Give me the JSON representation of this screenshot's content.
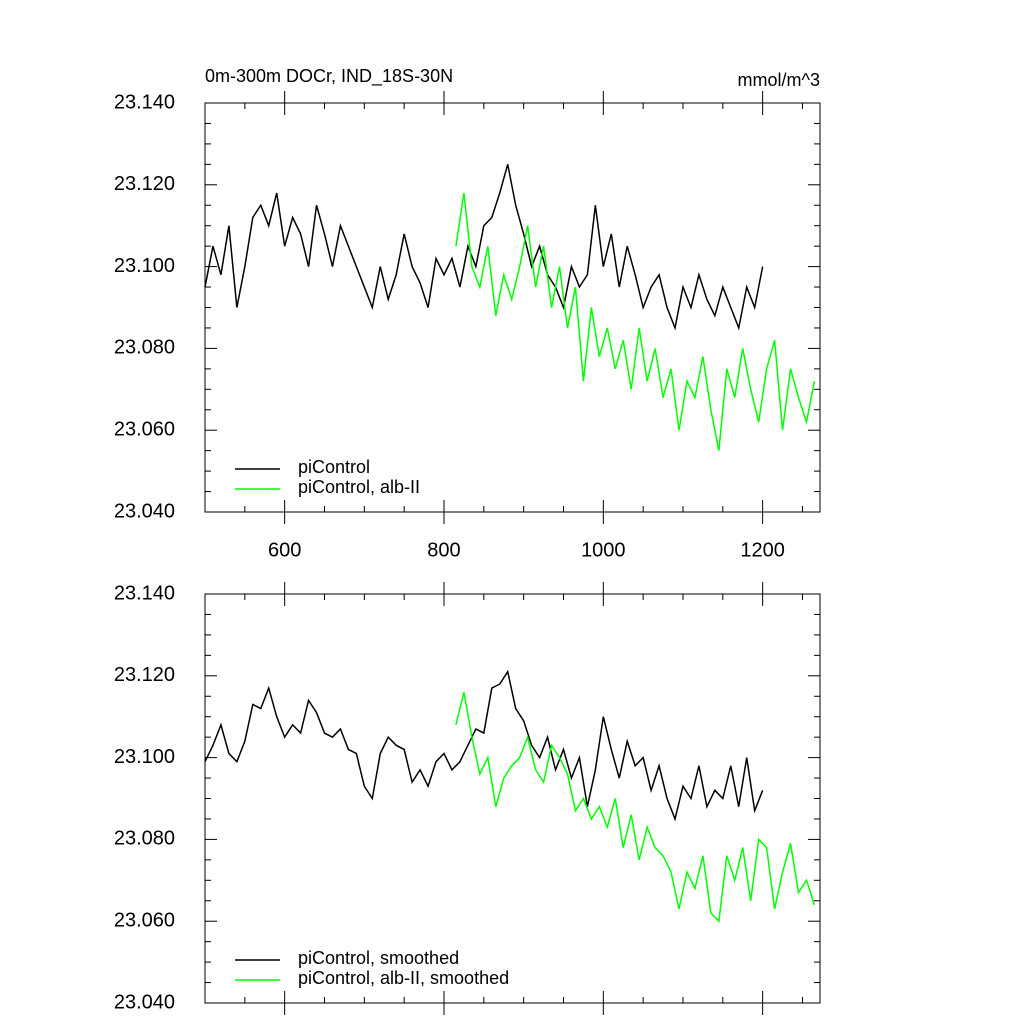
{
  "chart_data": [
    {
      "type": "line",
      "title": "0m-300m DOCr, IND_18S-30N",
      "units": "mmol/m^3",
      "xlim": [
        500,
        1272
      ],
      "xticks": [
        600,
        800,
        1000,
        1200
      ],
      "show_xtick_labels": true,
      "ylim": [
        23.04,
        23.14
      ],
      "yticks": [
        {
          "value": 23.04,
          "label": "23.040"
        },
        {
          "value": 23.06,
          "label": "23.060"
        },
        {
          "value": 23.08,
          "label": "23.080"
        },
        {
          "value": 23.1,
          "label": "23.100"
        },
        {
          "value": 23.12,
          "label": "23.120"
        },
        {
          "value": 23.14,
          "label": "23.140"
        }
      ],
      "legend": "lower left",
      "series": [
        {
          "name": "piControl",
          "color": "#000000",
          "x": [
            500,
            510,
            520,
            530,
            540,
            550,
            560,
            570,
            580,
            590,
            600,
            610,
            620,
            630,
            640,
            650,
            660,
            670,
            680,
            690,
            700,
            710,
            720,
            730,
            740,
            750,
            760,
            770,
            780,
            790,
            800,
            810,
            820,
            830,
            840,
            850,
            860,
            870,
            880,
            890,
            900,
            910,
            920,
            930,
            940,
            950,
            960,
            970,
            980,
            990,
            1000,
            1010,
            1020,
            1030,
            1040,
            1050,
            1060,
            1070,
            1080,
            1090,
            1100,
            1110,
            1120,
            1130,
            1140,
            1150,
            1160,
            1170,
            1180,
            1190,
            1200
          ],
          "values": [
            23.095,
            23.105,
            23.098,
            23.11,
            23.09,
            23.1,
            23.112,
            23.115,
            23.11,
            23.118,
            23.105,
            23.112,
            23.108,
            23.1,
            23.115,
            23.108,
            23.1,
            23.11,
            23.105,
            23.1,
            23.095,
            23.09,
            23.1,
            23.092,
            23.098,
            23.108,
            23.1,
            23.096,
            23.09,
            23.102,
            23.098,
            23.102,
            23.095,
            23.105,
            23.1,
            23.11,
            23.112,
            23.118,
            23.125,
            23.115,
            23.108,
            23.1,
            23.105,
            23.098,
            23.095,
            23.09,
            23.1,
            23.095,
            23.098,
            23.115,
            23.1,
            23.108,
            23.095,
            23.105,
            23.098,
            23.09,
            23.095,
            23.098,
            23.09,
            23.085,
            23.095,
            23.09,
            23.098,
            23.092,
            23.088,
            23.095,
            23.09,
            23.085,
            23.095,
            23.09,
            23.1
          ]
        },
        {
          "name": "piControl, alb-II",
          "color": "#00ff00",
          "x": [
            815,
            825,
            835,
            845,
            855,
            865,
            875,
            885,
            895,
            905,
            915,
            925,
            935,
            945,
            955,
            965,
            975,
            985,
            995,
            1005,
            1015,
            1025,
            1035,
            1045,
            1055,
            1065,
            1075,
            1085,
            1095,
            1105,
            1115,
            1125,
            1135,
            1145,
            1155,
            1165,
            1175,
            1185,
            1195,
            1205,
            1215,
            1225,
            1235,
            1245,
            1255,
            1265
          ],
          "values": [
            23.105,
            23.118,
            23.1,
            23.095,
            23.105,
            23.088,
            23.098,
            23.092,
            23.1,
            23.11,
            23.095,
            23.105,
            23.09,
            23.1,
            23.085,
            23.095,
            23.072,
            23.09,
            23.078,
            23.085,
            23.075,
            23.082,
            23.07,
            23.085,
            23.072,
            23.08,
            23.068,
            23.075,
            23.06,
            23.072,
            23.068,
            23.078,
            23.065,
            23.055,
            23.075,
            23.068,
            23.08,
            23.07,
            23.062,
            23.075,
            23.082,
            23.06,
            23.075,
            23.068,
            23.062,
            23.072
          ]
        }
      ]
    },
    {
      "type": "line",
      "xlim": [
        500,
        1272
      ],
      "xticks": [
        600,
        800,
        1000,
        1200
      ],
      "show_xtick_labels": false,
      "ylim": [
        23.04,
        23.14
      ],
      "yticks": [
        {
          "value": 23.04,
          "label": "23.040"
        },
        {
          "value": 23.06,
          "label": "23.060"
        },
        {
          "value": 23.08,
          "label": "23.080"
        },
        {
          "value": 23.1,
          "label": "23.100"
        },
        {
          "value": 23.12,
          "label": "23.120"
        },
        {
          "value": 23.14,
          "label": "23.140"
        }
      ],
      "legend": "lower left",
      "series": [
        {
          "name": "piControl, smoothed",
          "color": "#000000",
          "x": [
            500,
            510,
            520,
            530,
            540,
            550,
            560,
            570,
            580,
            590,
            600,
            610,
            620,
            630,
            640,
            650,
            660,
            670,
            680,
            690,
            700,
            710,
            720,
            730,
            740,
            750,
            760,
            770,
            780,
            790,
            800,
            810,
            820,
            830,
            840,
            850,
            860,
            870,
            880,
            890,
            900,
            910,
            920,
            930,
            940,
            950,
            960,
            970,
            980,
            990,
            1000,
            1010,
            1020,
            1030,
            1040,
            1050,
            1060,
            1070,
            1080,
            1090,
            1100,
            1110,
            1120,
            1130,
            1140,
            1150,
            1160,
            1170,
            1180,
            1190,
            1200
          ],
          "values": [
            23.099,
            23.103,
            23.108,
            23.101,
            23.099,
            23.104,
            23.113,
            23.112,
            23.117,
            23.11,
            23.105,
            23.108,
            23.106,
            23.114,
            23.111,
            23.106,
            23.105,
            23.107,
            23.102,
            23.101,
            23.093,
            23.09,
            23.101,
            23.105,
            23.103,
            23.102,
            23.094,
            23.097,
            23.093,
            23.099,
            23.101,
            23.097,
            23.099,
            23.103,
            23.107,
            23.106,
            23.117,
            23.118,
            23.121,
            23.112,
            23.109,
            23.103,
            23.1,
            23.105,
            23.097,
            23.102,
            23.095,
            23.1,
            23.088,
            23.097,
            23.11,
            23.102,
            23.095,
            23.104,
            23.098,
            23.1,
            23.092,
            23.098,
            23.09,
            23.085,
            23.093,
            23.09,
            23.098,
            23.088,
            23.092,
            23.09,
            23.098,
            23.088,
            23.1,
            23.087,
            23.092
          ]
        },
        {
          "name": "piControl, alb-II, smoothed",
          "color": "#00ff00",
          "x": [
            815,
            825,
            835,
            845,
            855,
            865,
            875,
            885,
            895,
            905,
            915,
            925,
            935,
            945,
            955,
            965,
            975,
            985,
            995,
            1005,
            1015,
            1025,
            1035,
            1045,
            1055,
            1065,
            1075,
            1085,
            1095,
            1105,
            1115,
            1125,
            1135,
            1145,
            1155,
            1165,
            1175,
            1185,
            1195,
            1205,
            1215,
            1225,
            1235,
            1245,
            1255,
            1265
          ],
          "values": [
            23.108,
            23.116,
            23.105,
            23.096,
            23.1,
            23.088,
            23.095,
            23.098,
            23.1,
            23.105,
            23.097,
            23.094,
            23.103,
            23.1,
            23.096,
            23.087,
            23.09,
            23.085,
            23.088,
            23.083,
            23.09,
            23.078,
            23.086,
            23.075,
            23.083,
            23.078,
            23.076,
            23.072,
            23.063,
            23.072,
            23.068,
            23.076,
            23.062,
            23.06,
            23.076,
            23.07,
            23.078,
            23.065,
            23.08,
            23.078,
            23.063,
            23.072,
            23.079,
            23.067,
            23.07,
            23.064
          ]
        }
      ]
    }
  ]
}
